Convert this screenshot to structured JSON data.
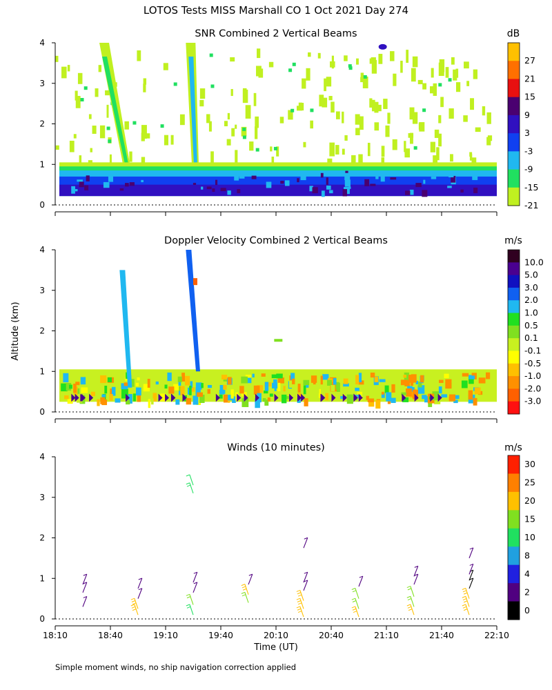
{
  "page_title": "LOTOS Tests MISS Marshall CO   1 Oct 2021 Day 274",
  "footer_note": "Simple moment winds, no ship navigation correction applied",
  "y_axis_label": "Altitude (km)",
  "x_axis_label": "Time (UT)",
  "x_ticks": [
    "18:10",
    "18:40",
    "19:10",
    "19:40",
    "20:10",
    "20:40",
    "21:10",
    "21:40",
    "22:10"
  ],
  "x_range_minutes": [
    1090,
    1330
  ],
  "colors": {
    "snr": [
      "#c0f020",
      "#20e060",
      "#20b8f0",
      "#1040f0",
      "#3010c0",
      "#4a0070",
      "#e81010",
      "#ff7000",
      "#ffc000"
    ],
    "velocity": [
      "#ff1010",
      "#ff6000",
      "#ff9000",
      "#ffc000",
      "#ffff00",
      "#c8f020",
      "#80e020",
      "#20e020",
      "#20b8f0",
      "#1060f0",
      "#1010c0",
      "#4a0090",
      "#300020"
    ],
    "winds": [
      "#000000",
      "#500080",
      "#2020e0",
      "#20a0e0",
      "#20e060",
      "#80e020",
      "#ffc000",
      "#ff8000",
      "#ff2000"
    ]
  },
  "chart_data": [
    {
      "type": "heatmap",
      "title": "SNR Combined 2 Vertical Beams",
      "xlabel": "Time (UT)",
      "ylabel": "Altitude (km)",
      "xlim": [
        1090,
        1330
      ],
      "ylim": [
        0,
        4
      ],
      "yticks": [
        0,
        1,
        2,
        3,
        4
      ],
      "colorbar_unit": "dB",
      "colorbar_labels": [
        "27",
        "21",
        "15",
        "9",
        "3",
        "-3",
        "-9",
        "-15",
        "-21"
      ],
      "profile": [
        {
          "alt": 0.3,
          "snr": 3
        },
        {
          "alt": 0.5,
          "snr": 0
        },
        {
          "alt": 0.7,
          "snr": -3
        },
        {
          "alt": 0.85,
          "snr": -9
        },
        {
          "alt": 0.95,
          "snr": -15
        },
        {
          "alt": 1.05,
          "snr": -21
        }
      ],
      "plumes": [
        {
          "name": "plume-1",
          "time_start": 1114,
          "time_end": 1131,
          "alt_bottom": 0.9,
          "alt_top": 4.0,
          "snr": -15
        },
        {
          "name": "plume-2",
          "time_start": 1161,
          "time_end": 1168,
          "alt_bottom": 1.0,
          "alt_top": 4.0,
          "snr": -9
        }
      ],
      "echo_spot": {
        "time": 1268,
        "alt": 3.9,
        "snr": 3
      }
    },
    {
      "type": "heatmap",
      "title": "Doppler Velocity Combined 2 Vertical Beams",
      "xlabel": "Time (UT)",
      "ylabel": "Altitude (km)",
      "xlim": [
        1090,
        1330
      ],
      "ylim": [
        0,
        4
      ],
      "yticks": [
        0,
        1,
        2,
        3,
        4
      ],
      "colorbar_unit": "m/s",
      "colorbar_labels": [
        "10.0",
        "5.0",
        "3.0",
        "2.0",
        "1.0",
        "0.5",
        "0.1",
        "-0.1",
        "-0.5",
        "-1.0",
        "-2.0",
        "-3.0"
      ],
      "layer": {
        "alt_bottom": 0.25,
        "alt_top": 1.05,
        "dominant_range_ms": [
          -2.0,
          0.5
        ]
      },
      "streaks": [
        {
          "name": "fall-streak-1",
          "time_start": 1125,
          "time_end": 1131,
          "alt_top": 3.5,
          "alt_bottom": 0.6,
          "velocity": 1.0
        },
        {
          "name": "fall-streak-2",
          "time_start": 1161,
          "time_end": 1168,
          "alt_top": 4.0,
          "alt_bottom": 1.0,
          "velocity": 2.0
        }
      ]
    },
    {
      "type": "scatter",
      "title": "Winds (10 minutes)",
      "xlabel": "Time (UT)",
      "ylabel": "Altitude (km)",
      "xlim": [
        1090,
        1330
      ],
      "ylim": [
        0,
        4
      ],
      "yticks": [
        0,
        1,
        2,
        3,
        4
      ],
      "colorbar_unit": "m/s",
      "colorbar_labels": [
        "30",
        "25",
        "20",
        "15",
        "10",
        "8",
        "4",
        "2",
        "0"
      ],
      "profiles": [
        {
          "time": 1105,
          "points": [
            [
              0.3,
              2
            ],
            [
              0.65,
              3
            ],
            [
              0.85,
              3
            ]
          ]
        },
        {
          "time": 1135,
          "points": [
            [
              0.1,
              22
            ],
            [
              0.25,
              24
            ],
            [
              0.5,
              3
            ],
            [
              0.75,
              3
            ]
          ]
        },
        {
          "time": 1165,
          "points": [
            [
              0.1,
              14
            ],
            [
              0.35,
              15
            ],
            [
              0.65,
              3
            ],
            [
              0.9,
              3
            ],
            [
              3.1,
              12
            ],
            [
              3.3,
              11
            ]
          ]
        },
        {
          "time": 1195,
          "points": [
            [
              0.4,
              19
            ],
            [
              0.6,
              20
            ],
            [
              0.85,
              3
            ]
          ]
        },
        {
          "time": 1225,
          "points": [
            [
              0.05,
              22
            ],
            [
              0.25,
              22
            ],
            [
              0.45,
              20
            ],
            [
              0.7,
              3
            ],
            [
              0.9,
              3
            ],
            [
              1.75,
              3
            ]
          ]
        },
        {
          "time": 1255,
          "points": [
            [
              0.05,
              22
            ],
            [
              0.25,
              19
            ],
            [
              0.5,
              17
            ],
            [
              0.8,
              2
            ]
          ]
        },
        {
          "time": 1285,
          "points": [
            [
              0.1,
              24
            ],
            [
              0.3,
              17
            ],
            [
              0.55,
              18
            ],
            [
              0.85,
              3
            ],
            [
              1.05,
              3
            ]
          ]
        },
        {
          "time": 1315,
          "points": [
            [
              0.1,
              24
            ],
            [
              0.3,
              22
            ],
            [
              0.5,
              20
            ],
            [
              0.75,
              1
            ],
            [
              0.95,
              1
            ],
            [
              1.1,
              3
            ],
            [
              1.5,
              3
            ]
          ]
        }
      ]
    }
  ]
}
